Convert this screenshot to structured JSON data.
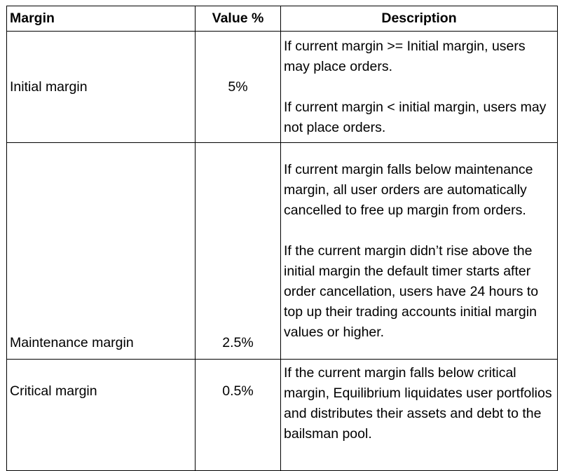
{
  "table": {
    "header": [
      "Margin",
      "Value %",
      "Description"
    ],
    "rows": [
      [
        "Initial margin",
        "5%",
        [
          "If current margin >= Initial margin, users may place orders.",
          "If current margin < initial margin, users may not place orders."
        ]
      ],
      [
        "Maintenance margin",
        "2.5%",
        [
          "If current margin falls below maintenance margin, all user orders are automatically cancelled to free up margin from orders.",
          "If the current margin didn’t rise above the initial margin the default timer starts after order cancellation, users have 24 hours to top up their trading accounts initial margin values or higher."
        ]
      ],
      [
        "Critical margin",
        "0.5%",
        [
          "If the current margin falls below critical margin, Equilibrium liquidates user portfolios and distributes their assets and debt to the bailsman pool."
        ]
      ]
    ]
  }
}
